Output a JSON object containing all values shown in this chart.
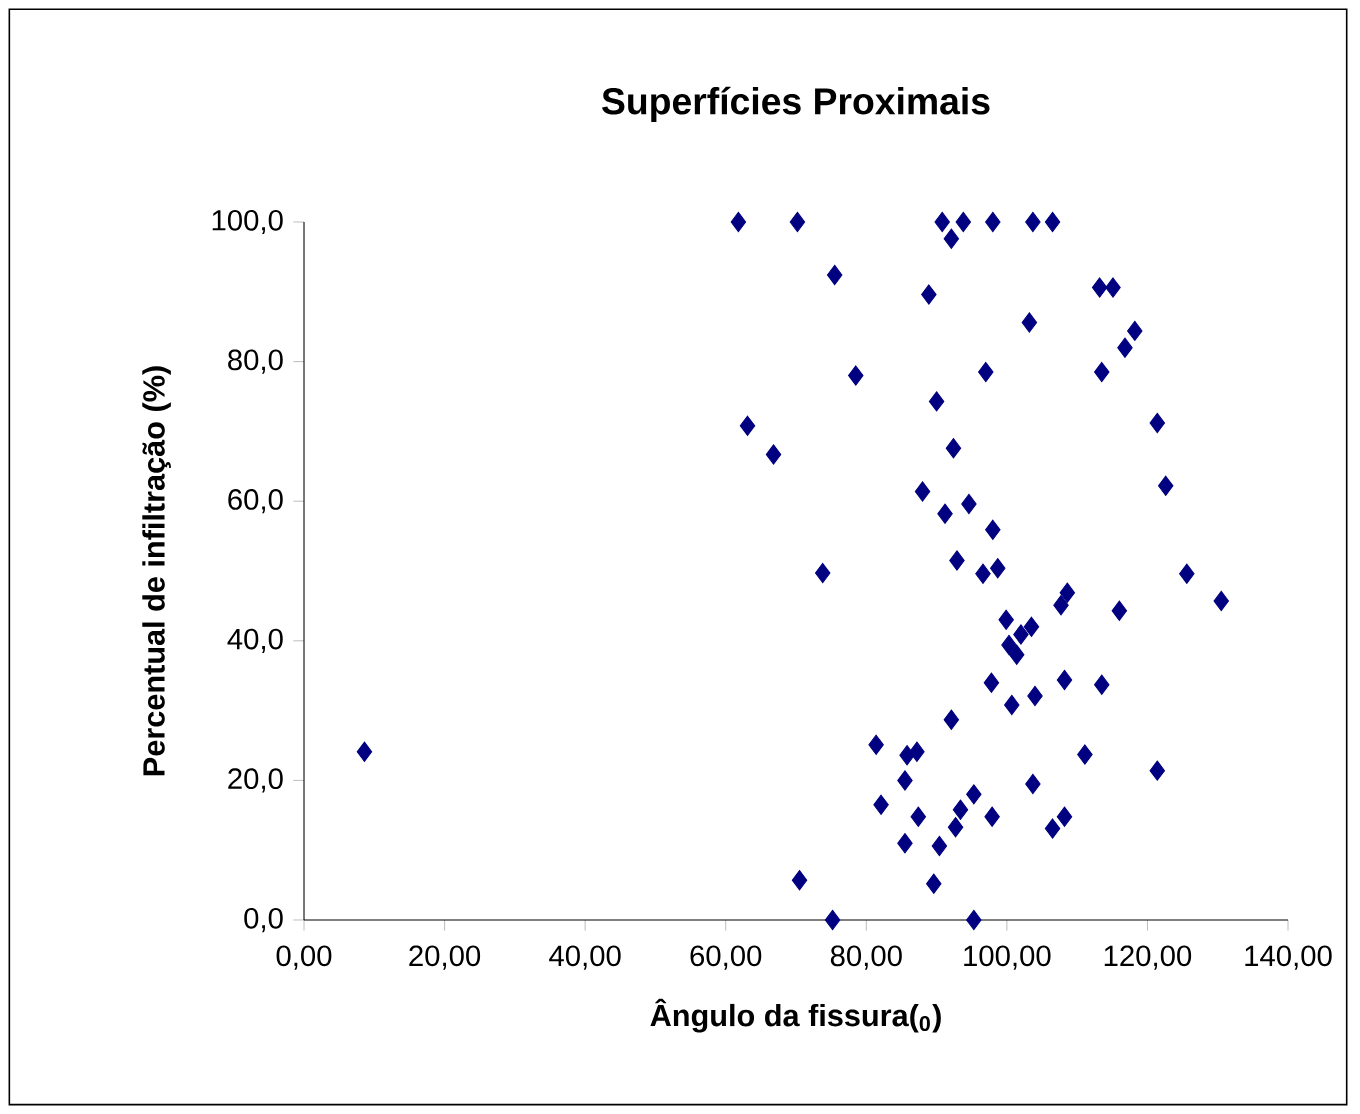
{
  "chart_data": {
    "type": "scatter",
    "title": "Superfícies Proximais",
    "xlabel": "Ângulo da fissura($_{0}$)",
    "ylabel": "Percentual de infiltração (%)",
    "xlim": [
      0,
      140
    ],
    "ylim": [
      0,
      100
    ],
    "xticks": [
      {
        "value": 0,
        "label": "0,00"
      },
      {
        "value": 20,
        "label": "20,00"
      },
      {
        "value": 40,
        "label": "40,00"
      },
      {
        "value": 60,
        "label": "60,00"
      },
      {
        "value": 80,
        "label": "80,00"
      },
      {
        "value": 100,
        "label": "100,00"
      },
      {
        "value": 120,
        "label": "120,00"
      },
      {
        "value": 140,
        "label": "140,00"
      }
    ],
    "yticks": [
      {
        "value": 0,
        "label": "0,0"
      },
      {
        "value": 20,
        "label": "20,0"
      },
      {
        "value": 40,
        "label": "40,0"
      },
      {
        "value": 60,
        "label": "60,0"
      },
      {
        "value": 80,
        "label": "80,0"
      },
      {
        "value": 100,
        "label": "100,0"
      }
    ],
    "grid": false,
    "marker": "diamond",
    "series": [
      {
        "color": "#000080",
        "x": [
          8.6,
          61.8,
          70.2,
          63.1,
          66.8,
          70.5,
          90.8,
          93.8,
          92.1,
          98.0,
          103.7,
          106.5,
          75.5,
          88.9,
          113.2,
          115.1,
          103.2,
          118.2,
          116.8,
          78.5,
          97.0,
          113.5,
          90.0,
          92.4,
          121.4,
          122.6,
          88.0,
          91.2,
          94.6,
          98.0,
          73.8,
          92.9,
          96.6,
          98.7,
          125.6,
          130.5,
          108.6,
          107.7,
          116.0,
          99.9,
          103.5,
          102.0,
          100.3,
          101.4,
          97.8,
          108.2,
          113.5,
          104.0,
          100.7,
          92.1,
          81.4,
          85.8,
          87.2,
          111.1,
          121.4,
          85.5,
          103.7,
          95.3,
          93.4,
          82.1,
          87.4,
          92.7,
          97.9,
          108.2,
          106.5,
          85.5,
          90.4,
          89.6,
          75.2,
          95.3
        ],
        "values": [
          24.1,
          100,
          100,
          70.8,
          66.7,
          5.7,
          100,
          100,
          97.6,
          100,
          100,
          100,
          92.4,
          89.6,
          90.6,
          90.6,
          85.6,
          84.4,
          82.0,
          78.0,
          78.5,
          78.5,
          74.3,
          67.6,
          71.2,
          62.2,
          61.4,
          58.2,
          59.6,
          55.9,
          49.7,
          51.5,
          49.6,
          50.4,
          49.6,
          45.7,
          46.9,
          45.1,
          44.3,
          43.0,
          42.0,
          40.9,
          39.4,
          38.0,
          34.0,
          34.4,
          33.7,
          32.1,
          30.8,
          28.7,
          25.1,
          23.6,
          24.1,
          23.7,
          21.4,
          20.0,
          19.5,
          18.0,
          15.8,
          16.5,
          14.8,
          13.3,
          14.8,
          14.8,
          13.1,
          11.0,
          10.6,
          5.2,
          0,
          0
        ]
      }
    ]
  }
}
